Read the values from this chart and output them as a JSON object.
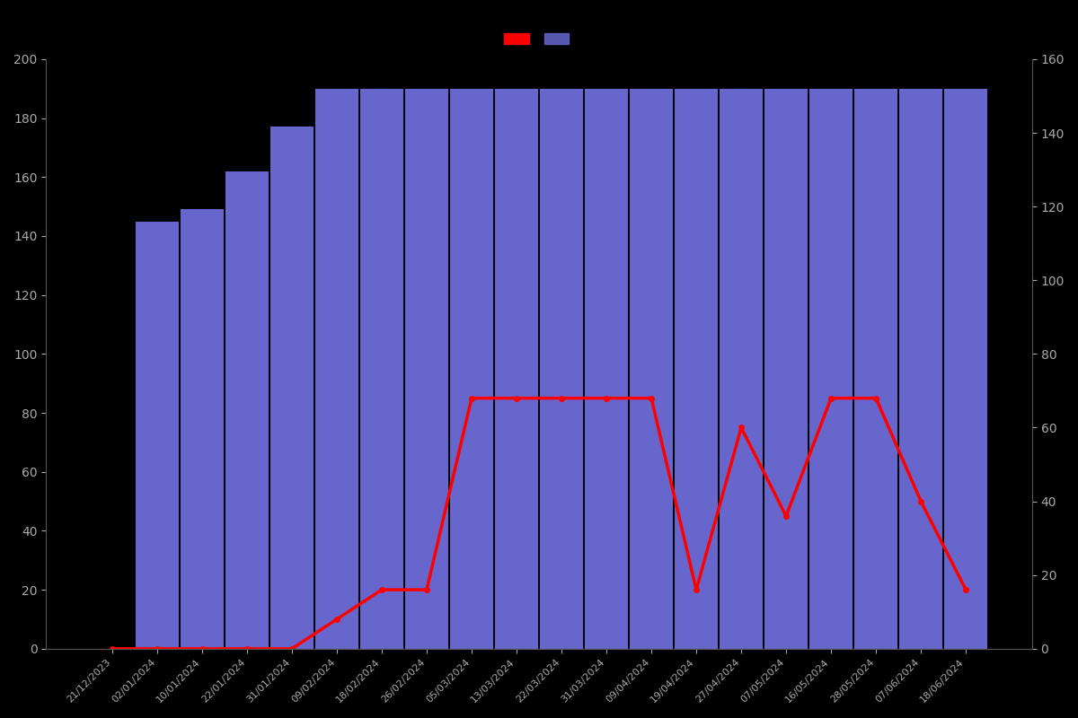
{
  "categories": [
    "21/12/2023",
    "02/01/2024",
    "10/01/2024",
    "22/01/2024",
    "31/01/2024",
    "09/02/2024",
    "18/02/2024",
    "26/02/2024",
    "05/03/2024",
    "13/03/2024",
    "22/03/2024",
    "31/03/2024",
    "09/04/2024",
    "19/04/2024",
    "27/04/2024",
    "07/05/2024",
    "16/05/2024",
    "28/05/2024",
    "07/06/2024",
    "18/06/2024"
  ],
  "bar_values": [
    0,
    145,
    149,
    162,
    177,
    190,
    190,
    190,
    190,
    190,
    190,
    190,
    190,
    190,
    190,
    190,
    190,
    190,
    190,
    190
  ],
  "line_data": [
    [
      0,
      0
    ],
    [
      1,
      0
    ],
    [
      2,
      0
    ],
    [
      3,
      0
    ],
    [
      4,
      0
    ],
    [
      5,
      10
    ],
    [
      6,
      20
    ],
    [
      7,
      20
    ],
    [
      8,
      85
    ],
    [
      9,
      85
    ],
    [
      10,
      85
    ],
    [
      11,
      85
    ],
    [
      12,
      85
    ],
    [
      13,
      20
    ],
    [
      14,
      75
    ],
    [
      15,
      45
    ],
    [
      16,
      85
    ],
    [
      17,
      85
    ],
    [
      18,
      50
    ],
    [
      19,
      20
    ]
  ],
  "bar_color": "#6666cc",
  "line_color": "#ff0000",
  "background_color": "#000000",
  "text_color": "#aaaaaa",
  "ylim_left": [
    0,
    200
  ],
  "ylim_right": [
    0,
    160
  ],
  "yticks_left": [
    0,
    20,
    40,
    60,
    80,
    100,
    120,
    140,
    160,
    180,
    200
  ],
  "yticks_right": [
    0,
    20,
    40,
    60,
    80,
    100,
    120,
    140,
    160
  ],
  "bar_width": 0.95
}
